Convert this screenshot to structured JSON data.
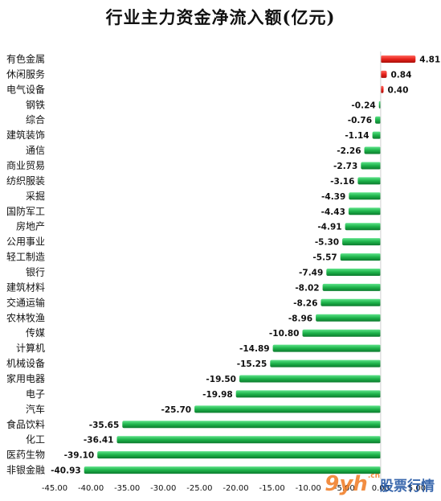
{
  "chart_data": {
    "type": "bar",
    "orientation": "horizontal",
    "title": "行业主力资金净流入额(亿元)",
    "categories": [
      "有色金属",
      "休闲服务",
      "电气设备",
      "钢铁",
      "综合",
      "建筑装饰",
      "通信",
      "商业贸易",
      "纺织服装",
      "采掘",
      "国防军工",
      "房地产",
      "公用事业",
      "轻工制造",
      "银行",
      "建筑材料",
      "交通运输",
      "农林牧渔",
      "传媒",
      "计算机",
      "机械设备",
      "家用电器",
      "电子",
      "汽车",
      "食品饮料",
      "化工",
      "医药生物",
      "非银金融"
    ],
    "values": [
      4.81,
      0.84,
      0.4,
      -0.24,
      -0.76,
      -1.14,
      -2.26,
      -2.73,
      -3.16,
      -4.39,
      -4.43,
      -4.91,
      -5.3,
      -5.57,
      -7.49,
      -8.02,
      -8.26,
      -8.96,
      -10.8,
      -14.89,
      -15.25,
      -19.5,
      -19.98,
      -25.7,
      -35.65,
      -36.41,
      -39.1,
      -40.93
    ],
    "xlim": [
      -45,
      5
    ],
    "xticks": [
      -45,
      -40,
      -35,
      -30,
      -25,
      -20,
      -15,
      -10,
      -5,
      0,
      5
    ],
    "tick_labels": [
      "-45.00",
      "-40.00",
      "-35.00",
      "-30.00",
      "-25.00",
      "-20.00",
      "-15.00",
      "-10.00",
      "-5.00",
      "0.00",
      "5.00"
    ],
    "grid": false,
    "colors": {
      "positive": "#e8221c",
      "negative": "#1db34a"
    }
  },
  "watermark": {
    "logo": "9yh",
    "domain": ".cn",
    "text": "股票行情"
  }
}
